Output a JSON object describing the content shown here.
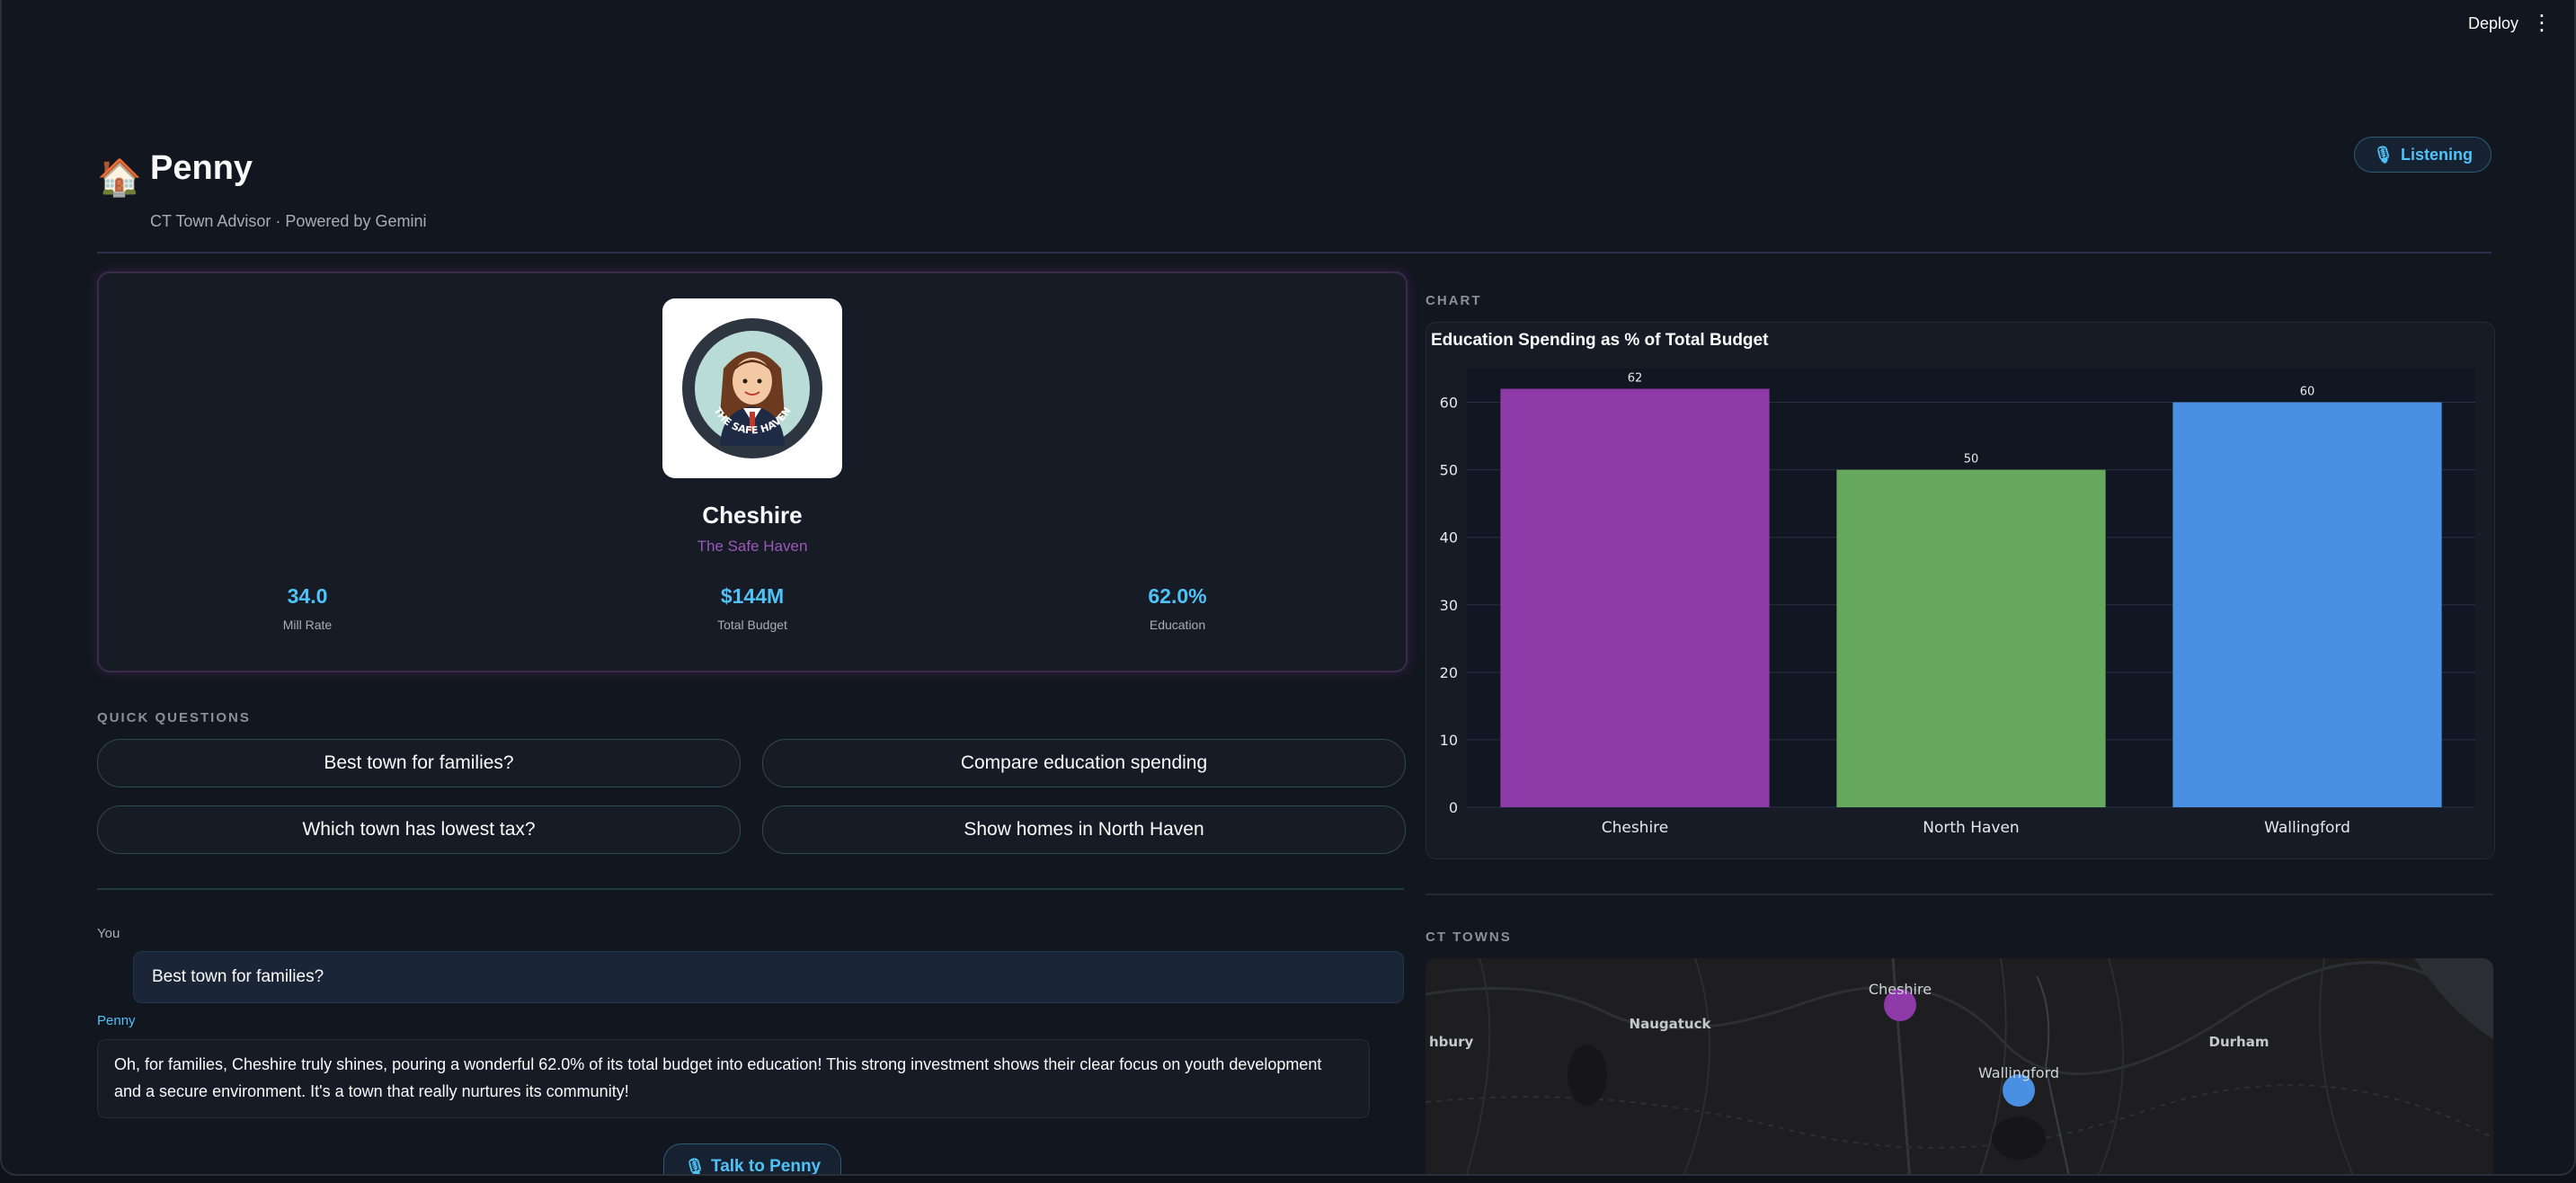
{
  "topbar": {
    "deploy_label": "Deploy",
    "menu_glyph": "⋮"
  },
  "header": {
    "icon": "🏠",
    "title": "Penny",
    "subtitle": "CT Town Advisor · Powered by Gemini",
    "status_icon": "🎙",
    "status_label": "Listening"
  },
  "town_card": {
    "name": "Cheshire",
    "tagline": "The Safe Haven",
    "avatar_caption": "THE SAFE HAVEN",
    "stats": [
      {
        "value": "34.0",
        "label": "Mill Rate"
      },
      {
        "value": "$144M",
        "label": "Total Budget"
      },
      {
        "value": "62.0%",
        "label": "Education"
      }
    ]
  },
  "quick_questions": {
    "label": "QUICK QUESTIONS",
    "items": [
      "Best town for families?",
      "Compare education spending",
      "Which town has lowest tax?",
      "Show homes in North Haven"
    ]
  },
  "chat": {
    "messages": [
      {
        "role": "You",
        "text": "Best town for families?"
      },
      {
        "role": "Penny",
        "text": "Oh, for families, Cheshire truly shines, pouring a wonderful 62.0% of its total budget into education! This strong investment shows their clear focus on youth development and a secure environment. It's a town that really nurtures its community!"
      }
    ],
    "talk_icon": "🎙",
    "talk_label": "Talk to Penny"
  },
  "chart_section": {
    "label": "CHART"
  },
  "chart_data": {
    "type": "bar",
    "title": "Education Spending as % of Total Budget",
    "categories": [
      "Cheshire",
      "North Haven",
      "Wallingford"
    ],
    "values": [
      62,
      50,
      60
    ],
    "data_labels": [
      "62",
      "50",
      "60"
    ],
    "colors": [
      "#8e3aa9",
      "#67a95c",
      "#4a90e2"
    ],
    "ylim": [
      0,
      65
    ],
    "yticks": [
      0,
      10,
      20,
      30,
      40,
      50,
      60
    ],
    "xlabel": "",
    "ylabel": "",
    "grid": true
  },
  "map_section": {
    "label": "CT TOWNS",
    "places": [
      {
        "name": "Cheshire",
        "highlighted": true,
        "color": "#8e3aa9"
      },
      {
        "name": "Wallingford",
        "highlighted": true,
        "color": "#4a90e2"
      },
      {
        "name": "Naugatuck",
        "highlighted": false
      },
      {
        "name": "Durham",
        "highlighted": false
      },
      {
        "name": "hbury",
        "highlighted": false
      }
    ]
  }
}
